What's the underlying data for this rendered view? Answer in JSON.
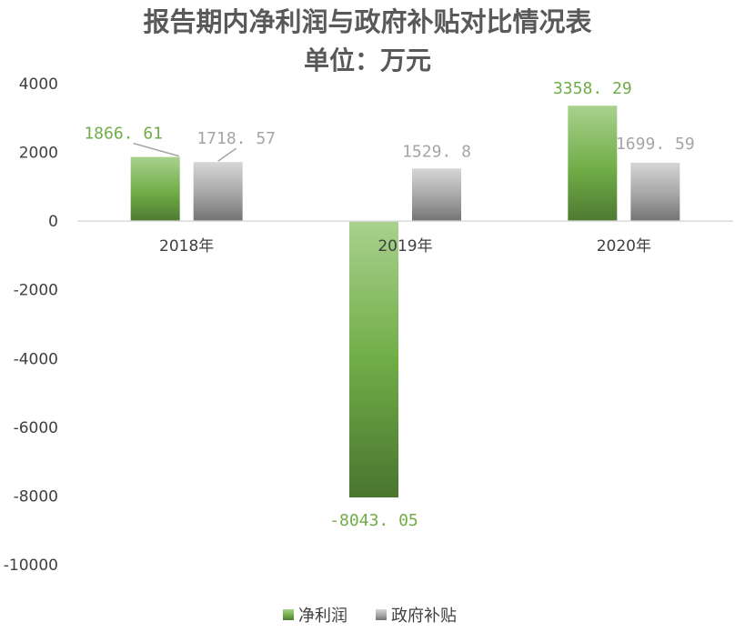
{
  "chart_data": {
    "type": "bar",
    "title": "报告期内净利润与政府补贴对比情况表",
    "subtitle": "单位：万元",
    "categories": [
      "2018年",
      "2019年",
      "2020年"
    ],
    "series": [
      {
        "name": "净利润",
        "values": [
          1866.61,
          -8043.05,
          3358.29
        ],
        "color": "#70ad47",
        "label_color": "#70ad47"
      },
      {
        "name": "政府补贴",
        "values": [
          1718.57,
          1529.8,
          1699.59
        ],
        "color": "#a5a5a5",
        "label_color": "#a5a5a5"
      }
    ],
    "data_labels": [
      [
        "1866. 61",
        "-8043. 05",
        "3358. 29"
      ],
      [
        "1718. 57",
        "1529. 8",
        "1699. 59"
      ]
    ],
    "yticks": [
      4000,
      2000,
      0,
      -2000,
      -4000,
      -6000,
      -8000,
      -10000
    ],
    "ylim": [
      -10000,
      4000
    ],
    "grid": false,
    "legend": "bottom",
    "xlabel": "",
    "ylabel": ""
  }
}
